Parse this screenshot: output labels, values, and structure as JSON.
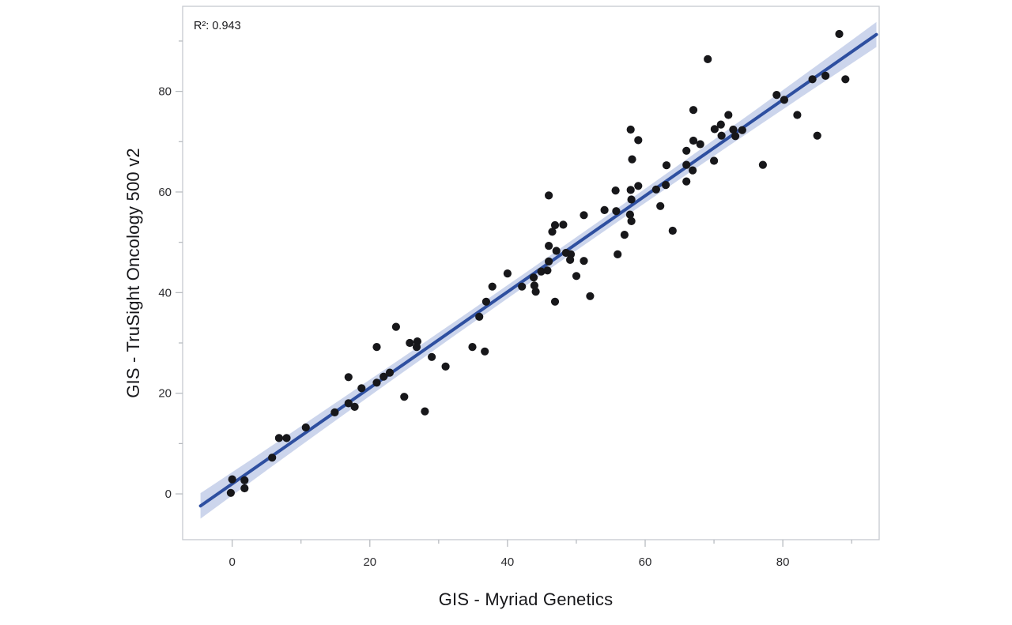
{
  "annotation": {
    "r_squared_label": "R²: 0.943"
  },
  "chart_data": {
    "type": "scatter",
    "title": "",
    "xlabel": "GIS - Myriad Genetics",
    "ylabel": "GIS - TruSight Oncology 500 v2",
    "r_squared": 0.943,
    "xlim": [
      -7.2,
      94.0
    ],
    "ylim": [
      -9.1,
      96.9
    ],
    "x_major_ticks": [
      0,
      20,
      40,
      60,
      80
    ],
    "x_minor_ticks": [
      10,
      30,
      50,
      70,
      90
    ],
    "y_major_ticks": [
      0,
      20,
      40,
      60,
      80
    ],
    "y_minor_ticks": [
      10,
      30,
      50,
      70,
      90
    ],
    "grid": "off",
    "legend": "none",
    "regression_line": {
      "slope": 0.954,
      "intercept": 2.0,
      "x_start": -4.6,
      "x_end": 93.6
    },
    "confidence_band": {
      "half_width_center": 1.3,
      "flare_coef": 0.0005,
      "x_center": 45
    },
    "points": [
      [
        -0.2,
        0.2
      ],
      [
        0.0,
        2.9
      ],
      [
        1.8,
        2.7
      ],
      [
        1.8,
        1.1
      ],
      [
        5.8,
        7.2
      ],
      [
        6.8,
        11.1
      ],
      [
        7.9,
        11.1
      ],
      [
        10.7,
        13.2
      ],
      [
        14.9,
        16.2
      ],
      [
        16.9,
        18.0
      ],
      [
        17.8,
        17.3
      ],
      [
        16.9,
        23.2
      ],
      [
        18.8,
        21.0
      ],
      [
        21.0,
        22.1
      ],
      [
        22.0,
        23.3
      ],
      [
        22.9,
        24.1
      ],
      [
        25.0,
        19.3
      ],
      [
        28.0,
        16.4
      ],
      [
        21.0,
        29.2
      ],
      [
        23.8,
        33.2
      ],
      [
        25.8,
        30.0
      ],
      [
        26.9,
        30.3
      ],
      [
        26.8,
        29.2
      ],
      [
        29.0,
        27.2
      ],
      [
        31.0,
        25.3
      ],
      [
        34.9,
        29.2
      ],
      [
        36.7,
        28.3
      ],
      [
        35.9,
        35.2
      ],
      [
        36.9,
        38.2
      ],
      [
        37.8,
        41.2
      ],
      [
        40.0,
        43.8
      ],
      [
        42.1,
        41.2
      ],
      [
        43.8,
        43.0
      ],
      [
        43.9,
        41.4
      ],
      [
        44.1,
        40.2
      ],
      [
        44.9,
        44.2
      ],
      [
        45.8,
        44.4
      ],
      [
        46.9,
        38.2
      ],
      [
        46.0,
        59.3
      ],
      [
        46.9,
        53.4
      ],
      [
        48.1,
        53.5
      ],
      [
        46.5,
        52.1
      ],
      [
        46.0,
        49.3
      ],
      [
        47.1,
        48.3
      ],
      [
        48.5,
        47.9
      ],
      [
        49.2,
        47.6
      ],
      [
        49.1,
        46.5
      ],
      [
        46.0,
        46.2
      ],
      [
        50.0,
        43.3
      ],
      [
        51.1,
        46.3
      ],
      [
        51.1,
        55.4
      ],
      [
        52.0,
        39.3
      ],
      [
        54.1,
        56.4
      ],
      [
        55.8,
        56.2
      ],
      [
        55.7,
        60.3
      ],
      [
        57.9,
        60.4
      ],
      [
        59.0,
        61.2
      ],
      [
        58.0,
        58.5
      ],
      [
        57.8,
        55.5
      ],
      [
        58.0,
        54.2
      ],
      [
        57.0,
        51.5
      ],
      [
        56.0,
        47.6
      ],
      [
        61.6,
        60.5
      ],
      [
        63.0,
        61.4
      ],
      [
        62.2,
        57.2
      ],
      [
        63.1,
        65.3
      ],
      [
        64.0,
        52.3
      ],
      [
        57.9,
        72.4
      ],
      [
        59.0,
        70.3
      ],
      [
        58.1,
        66.5
      ],
      [
        66.0,
        68.2
      ],
      [
        67.0,
        70.2
      ],
      [
        68.0,
        69.5
      ],
      [
        66.9,
        64.3
      ],
      [
        66.0,
        65.4
      ],
      [
        66.0,
        62.1
      ],
      [
        70.0,
        66.2
      ],
      [
        67.0,
        76.3
      ],
      [
        69.1,
        86.4
      ],
      [
        70.1,
        72.5
      ],
      [
        71.0,
        73.4
      ],
      [
        71.1,
        71.2
      ],
      [
        72.1,
        75.3
      ],
      [
        72.8,
        72.4
      ],
      [
        74.1,
        72.3
      ],
      [
        73.1,
        71.1
      ],
      [
        77.1,
        65.4
      ],
      [
        79.1,
        79.3
      ],
      [
        80.2,
        78.3
      ],
      [
        82.1,
        75.3
      ],
      [
        85.0,
        71.2
      ],
      [
        84.3,
        82.4
      ],
      [
        86.2,
        83.1
      ],
      [
        89.1,
        82.4
      ],
      [
        88.2,
        91.4
      ]
    ],
    "colors": {
      "point": "#17171a",
      "line": "#2e4fa0",
      "band": "#ccd5ec",
      "frame": "#c6cacf",
      "tick": "#b3b7bc",
      "tick_label": "#2b2b2e",
      "axis_label": "#17171a",
      "background": "#ffffff"
    }
  }
}
